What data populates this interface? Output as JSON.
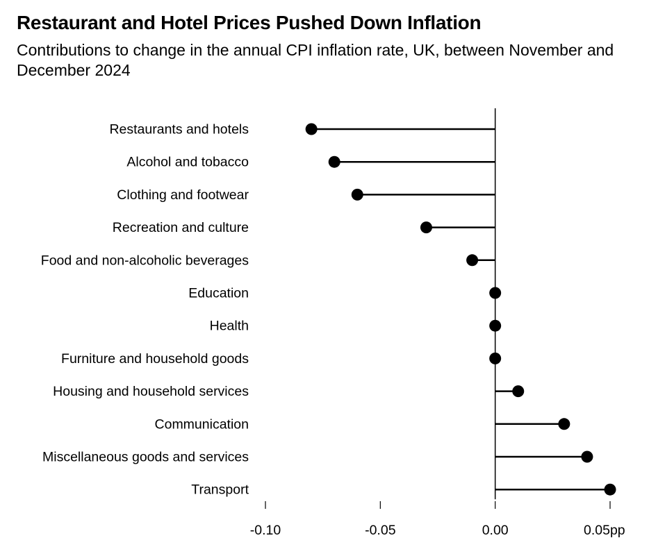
{
  "chart_data": {
    "type": "lollipop",
    "title": "Restaurant and Hotel Prices Pushed Down Inflation",
    "subtitle": "Contributions to change in the annual CPI inflation rate, UK, between November and December 2024",
    "categories": [
      "Restaurants and hotels",
      "Alcohol and tobacco",
      "Clothing and footwear",
      "Recreation and culture",
      "Food and non-alcoholic beverages",
      "Education",
      "Health",
      "Furniture and household goods",
      "Housing and household services",
      "Communication",
      "Miscellaneous goods and services",
      "Transport"
    ],
    "values": [
      -0.08,
      -0.07,
      -0.06,
      -0.03,
      -0.01,
      0.0,
      0.0,
      0.0,
      0.01,
      0.03,
      0.04,
      0.05
    ],
    "xlim": [
      -0.1,
      0.05
    ],
    "xticks": [
      -0.1,
      -0.05,
      0.0,
      0.05
    ],
    "xtick_labels": [
      "-0.10",
      "-0.05",
      "0.00",
      "0.05pp"
    ],
    "grid": false,
    "legend": "none",
    "colors": {
      "mark": "#000000",
      "axis": "#000000"
    }
  }
}
